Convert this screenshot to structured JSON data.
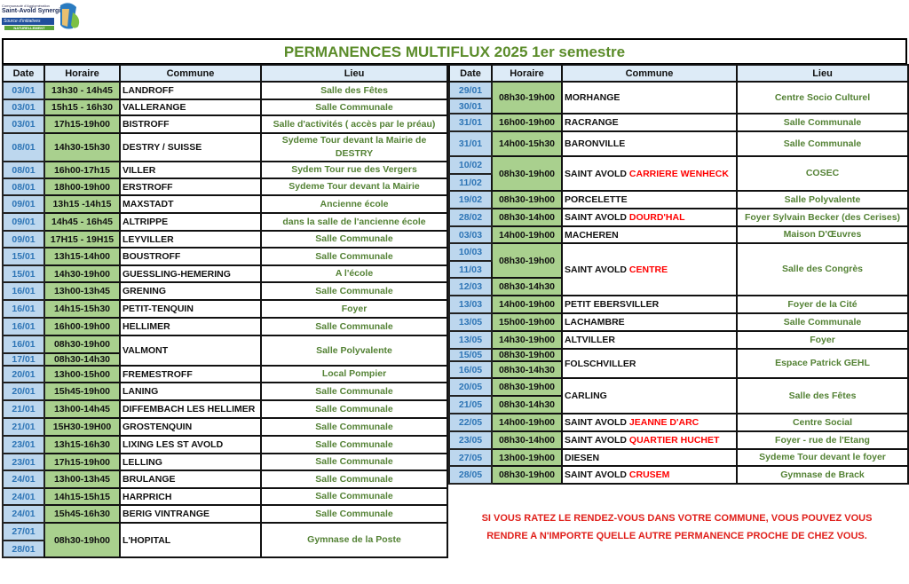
{
  "logo": {
    "line1": "Communauté d'Agglomération",
    "line2": "Saint-Avold Synergie",
    "line3": "Source d'initiatives",
    "line4": "NATURELLEMENT"
  },
  "title": "PERMANENCES MULTIFLUX 2025 1er semestre",
  "headers": [
    "Date",
    "Horaire",
    "Commune",
    "Lieu"
  ],
  "colors": {
    "title": "#5b8c2a",
    "date_bg": "#bdd7ee",
    "date_text": "#2e75b6",
    "horaire_bg": "#a9d08e",
    "lieu_text": "#548235",
    "highlight": "#ff0000",
    "header_bg": "#ddebf7"
  },
  "left": [
    {
      "slots": [
        {
          "time": "13h30 - 14h45",
          "dates": [
            "03/01"
          ]
        }
      ],
      "commune": "LANDROFF",
      "highlight": "",
      "lieu": "Salle des Fêtes"
    },
    {
      "slots": [
        {
          "time": "15h15 - 16h30",
          "dates": [
            "03/01"
          ]
        }
      ],
      "commune": "VALLERANGE",
      "highlight": "",
      "lieu": "Salle Communale"
    },
    {
      "slots": [
        {
          "time": "17h15-19h00",
          "dates": [
            "03/01"
          ]
        }
      ],
      "commune": "BISTROFF",
      "highlight": "",
      "lieu": "Salle d'activités ( accès par le préau)"
    },
    {
      "slots": [
        {
          "time": "14h30-15h30",
          "dates": [
            "08/01"
          ]
        }
      ],
      "commune": "DESTRY / SUISSE",
      "highlight": "",
      "lieu": "Sydeme Tour  devant la Mairie de DESTRY"
    },
    {
      "slots": [
        {
          "time": "16h00-17h15",
          "dates": [
            "08/01"
          ]
        }
      ],
      "commune": "VILLER",
      "highlight": "",
      "lieu": "Sydem Tour  rue des Vergers"
    },
    {
      "slots": [
        {
          "time": "18h00-19h00",
          "dates": [
            "08/01"
          ]
        }
      ],
      "commune": "ERSTROFF",
      "highlight": "",
      "lieu": "Sydeme Tour  devant la Mairie"
    },
    {
      "slots": [
        {
          "time": "13h15 -14h15",
          "dates": [
            "09/01"
          ]
        }
      ],
      "commune": "MAXSTADT",
      "highlight": "",
      "lieu": "Ancienne école"
    },
    {
      "slots": [
        {
          "time": "14h45 - 16h45",
          "dates": [
            "09/01"
          ]
        }
      ],
      "commune": "ALTRIPPE",
      "highlight": "",
      "lieu": "dans la salle de l'ancienne école"
    },
    {
      "slots": [
        {
          "time": "17H15 - 19H15",
          "dates": [
            "09/01"
          ]
        }
      ],
      "commune": "LEYVILLER",
      "highlight": "",
      "lieu": "Salle Communale"
    },
    {
      "slots": [
        {
          "time": "13h15-14h00",
          "dates": [
            "15/01"
          ]
        }
      ],
      "commune": "BOUSTROFF",
      "highlight": "",
      "lieu": "Salle Communale"
    },
    {
      "slots": [
        {
          "time": "14h30-19h00",
          "dates": [
            "15/01"
          ]
        }
      ],
      "commune": "GUESSLING-HEMERING",
      "highlight": "",
      "lieu": "A l'école"
    },
    {
      "slots": [
        {
          "time": "13h00-13h45",
          "dates": [
            "16/01"
          ]
        }
      ],
      "commune": "GRENING",
      "highlight": "",
      "lieu": "Salle Communale"
    },
    {
      "slots": [
        {
          "time": "14h15-15h30",
          "dates": [
            "16/01"
          ]
        }
      ],
      "commune": "PETIT-TENQUIN",
      "highlight": "",
      "lieu": "Foyer"
    },
    {
      "slots": [
        {
          "time": "16h00-19h00",
          "dates": [
            "16/01"
          ]
        }
      ],
      "commune": "HELLIMER",
      "highlight": "",
      "lieu": "Salle Communale"
    },
    {
      "slots": [
        {
          "time": "08h30-19h00",
          "dates": [
            "16/01"
          ]
        },
        {
          "time": "08h30-14h30",
          "dates": [
            "17/01"
          ]
        }
      ],
      "commune": "VALMONT",
      "highlight": "",
      "lieu": "Salle Polyvalente"
    },
    {
      "slots": [
        {
          "time": "13h00-15h00",
          "dates": [
            "20/01"
          ]
        }
      ],
      "commune": "FREMESTROFF",
      "highlight": "",
      "lieu": "Local Pompier"
    },
    {
      "slots": [
        {
          "time": "15h45-19h00",
          "dates": [
            "20/01"
          ]
        }
      ],
      "commune": "LANING",
      "highlight": "",
      "lieu": "Salle Communale"
    },
    {
      "slots": [
        {
          "time": "13h00-14h45",
          "dates": [
            "21/01"
          ]
        }
      ],
      "commune": "DIFFEMBACH LES HELLIMER",
      "highlight": "",
      "lieu": "Salle Communale"
    },
    {
      "slots": [
        {
          "time": "15H30-19H00",
          "dates": [
            "21/01"
          ]
        }
      ],
      "commune": "GROSTENQUIN",
      "highlight": "",
      "lieu": "Salle Communale"
    },
    {
      "slots": [
        {
          "time": "13h15-16h30",
          "dates": [
            "23/01"
          ]
        }
      ],
      "commune": "LIXING LES ST AVOLD",
      "highlight": "",
      "lieu": "Salle Communale"
    },
    {
      "slots": [
        {
          "time": "17h15-19h00",
          "dates": [
            "23/01"
          ]
        }
      ],
      "commune": "LELLING",
      "highlight": "",
      "lieu": "Salle Communale"
    },
    {
      "slots": [
        {
          "time": "13h00-13h45",
          "dates": [
            "24/01"
          ]
        }
      ],
      "commune": "BRULANGE",
      "highlight": "",
      "lieu": "Salle Communale"
    },
    {
      "slots": [
        {
          "time": "14h15-15h15",
          "dates": [
            "24/01"
          ]
        }
      ],
      "commune": "HARPRICH",
      "highlight": "",
      "lieu": "Salle Communale"
    },
    {
      "slots": [
        {
          "time": "15h45-16h30",
          "dates": [
            "24/01"
          ]
        }
      ],
      "commune": "BERIG VINTRANGE",
      "highlight": "",
      "lieu": "Salle Communale"
    },
    {
      "slots": [
        {
          "time": "08h30-19h00",
          "dates": [
            "27/01",
            "28/01"
          ]
        }
      ],
      "commune": "L'HOPITAL",
      "highlight": "",
      "lieu": "Gymnase de la Poste"
    }
  ],
  "right": [
    {
      "slots": [
        {
          "time": "08h30-19h00",
          "dates": [
            "29/01",
            "30/01"
          ]
        }
      ],
      "commune": "MORHANGE",
      "highlight": "",
      "lieu": "Centre Socio Culturel"
    },
    {
      "slots": [
        {
          "time": "16h00-19h00",
          "dates": [
            "31/01"
          ]
        }
      ],
      "commune": "RACRANGE",
      "highlight": "",
      "lieu": "Salle Communale"
    },
    {
      "slots": [
        {
          "time": "14h00-15h30",
          "dates": [
            "31/01"
          ]
        }
      ],
      "commune": "BARONVILLE",
      "highlight": "",
      "lieu": "Salle Communale"
    },
    {
      "slots": [
        {
          "time": "08h30-19h00",
          "dates": [
            "10/02",
            "11/02"
          ]
        }
      ],
      "commune": "SAINT AVOLD ",
      "highlight": "CARRIERE WENHECK",
      "lieu": "COSEC"
    },
    {
      "slots": [
        {
          "time": "08h30-19h00",
          "dates": [
            "19/02"
          ]
        }
      ],
      "commune": "PORCELETTE",
      "highlight": "",
      "lieu": "Salle Polyvalente"
    },
    {
      "slots": [
        {
          "time": "08h30-14h00",
          "dates": [
            "28/02"
          ]
        }
      ],
      "commune": "SAINT AVOLD ",
      "highlight": "DOURD'HAL",
      "lieu": "Foyer Sylvain Becker (des Cerises)"
    },
    {
      "slots": [
        {
          "time": "14h00-19h00",
          "dates": [
            "03/03"
          ]
        }
      ],
      "commune": "MACHEREN",
      "highlight": "",
      "lieu": "Maison D'Œuvres"
    },
    {
      "slots": [
        {
          "time": "08h30-19h00",
          "dates": [
            "10/03",
            "11/03"
          ]
        },
        {
          "time": "08h30-14h30",
          "dates": [
            "12/03"
          ]
        }
      ],
      "commune": "SAINT AVOLD ",
      "highlight": "CENTRE",
      "lieu": "Salle des Congrès"
    },
    {
      "slots": [
        {
          "time": "14h00-19h00",
          "dates": [
            "13/03"
          ]
        }
      ],
      "commune": "PETIT EBERSVILLER",
      "highlight": "",
      "lieu": "Foyer de la Cité"
    },
    {
      "slots": [
        {
          "time": "15h00-19h00",
          "dates": [
            "13/05"
          ]
        }
      ],
      "commune": "LACHAMBRE",
      "highlight": "",
      "lieu": "Salle Communale"
    },
    {
      "slots": [
        {
          "time": "14h30-19h00",
          "dates": [
            "13/05"
          ]
        }
      ],
      "commune": "ALTVILLER",
      "highlight": "",
      "lieu": "Foyer"
    },
    {
      "slots": [
        {
          "time": "08h30-19h00",
          "dates": [
            "15/05"
          ]
        },
        {
          "time": "08h30-14h30",
          "dates": [
            "16/05"
          ]
        }
      ],
      "commune": "FOLSCHVILLER",
      "highlight": "",
      "lieu": "Espace Patrick GEHL"
    },
    {
      "slots": [
        {
          "time": "08h30-19h00",
          "dates": [
            "20/05"
          ]
        },
        {
          "time": "08h30-14h30",
          "dates": [
            "21/05"
          ]
        }
      ],
      "commune": "CARLING",
      "highlight": "",
      "lieu": "Salle des Fêtes"
    },
    {
      "slots": [
        {
          "time": "14h00-19h00",
          "dates": [
            "22/05"
          ]
        }
      ],
      "commune": "SAINT AVOLD ",
      "highlight": "JEANNE D'ARC",
      "lieu": "Centre Social"
    },
    {
      "slots": [
        {
          "time": "08h30-14h00",
          "dates": [
            "23/05"
          ]
        }
      ],
      "commune": "SAINT AVOLD ",
      "highlight": "QUARTIER HUCHET",
      "lieu": "Foyer - rue de l'Etang"
    },
    {
      "slots": [
        {
          "time": "13h00-19h00",
          "dates": [
            "27/05"
          ]
        }
      ],
      "commune": "DIESEN",
      "highlight": "",
      "lieu": "Sydeme Tour devant le foyer"
    },
    {
      "slots": [
        {
          "time": "08h30-19h00",
          "dates": [
            "28/05"
          ]
        }
      ],
      "commune": "SAINT AVOLD ",
      "highlight": "CRUSEM",
      "lieu": "Gymnase de Brack"
    }
  ],
  "note": {
    "line1": "SI VOUS RATEZ LE RENDEZ-VOUS DANS VOTRE COMMUNE, VOUS POUVEZ VOUS",
    "line2": "RENDRE A N'IMPORTE QUELLE AUTRE PERMANENCE PROCHE DE CHEZ VOUS."
  }
}
